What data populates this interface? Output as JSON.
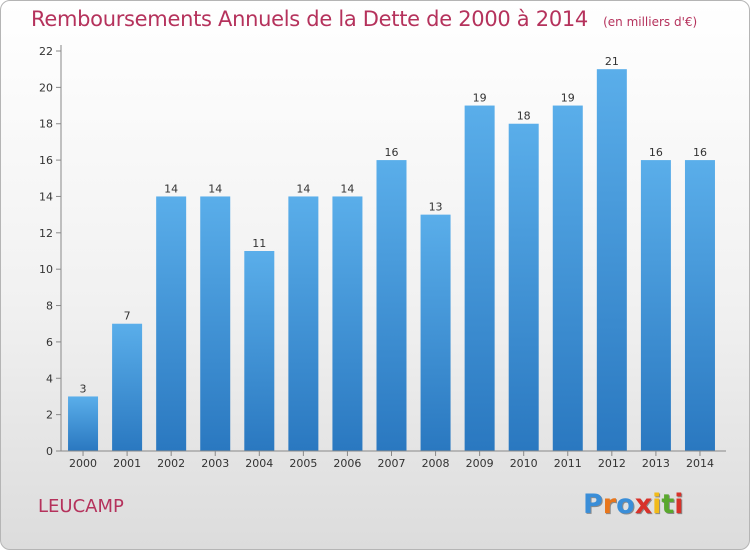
{
  "chart_data": {
    "type": "bar",
    "title": "Remboursements Annuels de la Dette de 2000 à 2014",
    "subtitle": "(en milliers d'€)",
    "categories": [
      "2000",
      "2001",
      "2002",
      "2003",
      "2004",
      "2005",
      "2006",
      "2007",
      "2008",
      "2009",
      "2010",
      "2011",
      "2012",
      "2013",
      "2014"
    ],
    "values": [
      3,
      7,
      14,
      14,
      11,
      14,
      14,
      16,
      13,
      19,
      18,
      19,
      21,
      16,
      16
    ],
    "ylim": [
      0,
      22
    ],
    "yticks": [
      0,
      2,
      4,
      6,
      8,
      10,
      12,
      14,
      16,
      18,
      20,
      22
    ],
    "xlabel": "",
    "ylabel": "",
    "grid": false,
    "bar_color": "#3d8fd4"
  },
  "commune": "LEUCAMP",
  "logo": {
    "letters": [
      "P",
      "r",
      "o",
      "x",
      "i",
      "t",
      "i"
    ],
    "colors": [
      "#3a8ed8",
      "#e8761c",
      "#3a8ed8",
      "#d8322a",
      "#f2bb1a",
      "#5aa82e",
      "#d8322a"
    ]
  }
}
